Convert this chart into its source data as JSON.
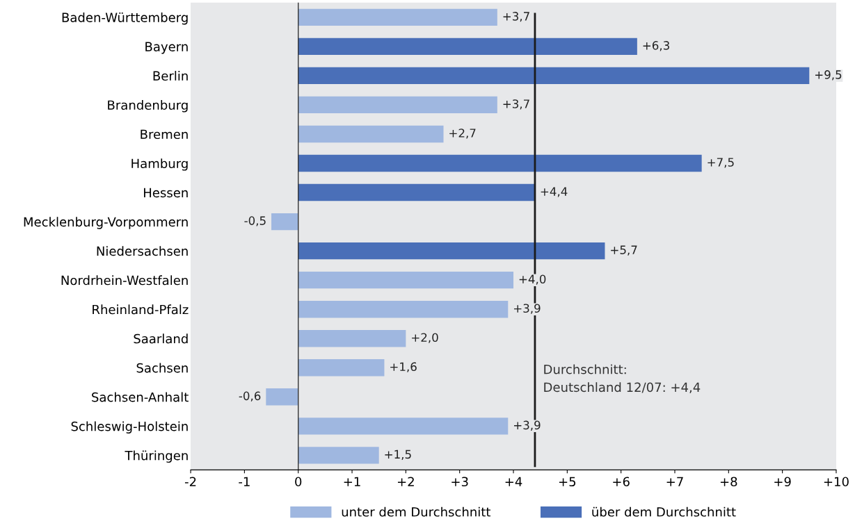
{
  "chart_data": {
    "type": "bar",
    "orientation": "horizontal",
    "categories": [
      "Baden-Württemberg",
      "Bayern",
      "Berlin",
      "Brandenburg",
      "Bremen",
      "Hamburg",
      "Hessen",
      "Mecklenburg-Vorpommern",
      "Niedersachsen",
      "Nordrhein-Westfalen",
      "Rheinland-Pfalz",
      "Saarland",
      "Sachsen",
      "Sachsen-Anhalt",
      "Schleswig-Holstein",
      "Thüringen"
    ],
    "series": [
      {
        "name": "unter dem Durchschnitt",
        "color": "#9fb7e0",
        "values": [
          3.7,
          null,
          null,
          3.7,
          2.7,
          null,
          null,
          -0.5,
          null,
          4.0,
          3.9,
          2.0,
          1.6,
          -0.6,
          3.9,
          1.5
        ],
        "value_labels": [
          "+3,7",
          null,
          null,
          "+3,7",
          "+2,7",
          null,
          null,
          "-0,5",
          null,
          "+4,0",
          "+3,9",
          "+2,0",
          "+1,6",
          "-0,6",
          "+3,9",
          "+1,5"
        ]
      },
      {
        "name": "über dem Durchschnitt",
        "color": "#4a6fb8",
        "values": [
          null,
          6.3,
          9.5,
          null,
          null,
          7.5,
          4.4,
          null,
          5.7,
          null,
          null,
          null,
          null,
          null,
          null,
          null
        ],
        "value_labels": [
          null,
          "+6,3",
          "+9,5",
          null,
          null,
          "+7,5",
          "+4,4",
          null,
          "+5,7",
          null,
          null,
          null,
          null,
          null,
          null,
          null
        ]
      }
    ],
    "xlim": [
      -2,
      10
    ],
    "xticks": [
      -2,
      -1,
      0,
      {
        "value": 1,
        "label": "+1"
      },
      {
        "value": 2,
        "label": "+2"
      },
      {
        "value": 3,
        "label": "+3"
      },
      {
        "value": 4,
        "label": "+4"
      },
      {
        "value": 5,
        "label": "+5"
      },
      {
        "value": 6,
        "label": "+6"
      },
      {
        "value": 7,
        "label": "+7"
      },
      {
        "value": 8,
        "label": "+8"
      },
      {
        "value": 9,
        "label": "+9"
      },
      {
        "value": 10,
        "label": "+10"
      }
    ],
    "ref_lines": [
      {
        "axis": "x",
        "value": 0,
        "color": "#333333"
      },
      {
        "axis": "x",
        "value": 4.4,
        "label": "Durchschnitt:\nDeutschland 12/07: +4,4",
        "color": "#1a1a1a"
      }
    ],
    "grid": false,
    "legend": "bottom"
  }
}
